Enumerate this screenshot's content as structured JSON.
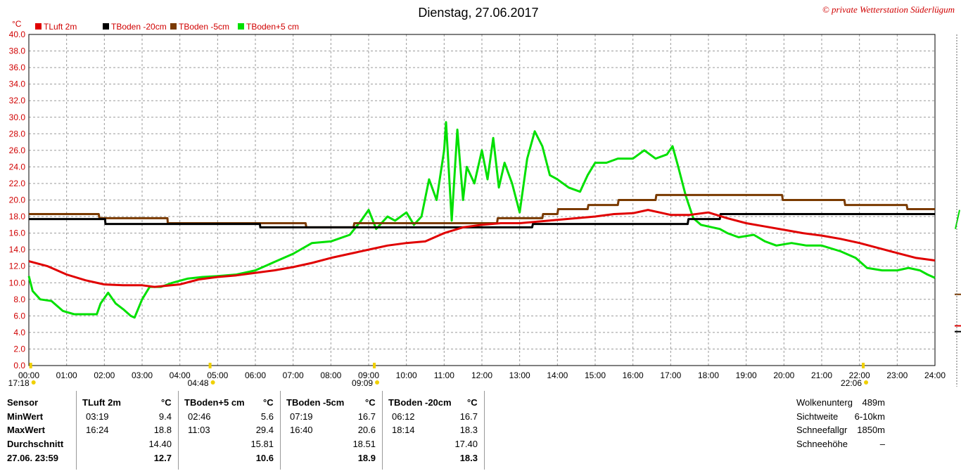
{
  "chart_data": {
    "type": "line",
    "title": "Dienstag, 27.06.2017",
    "watermark": "© private Wetterstation Süderlügum",
    "yunit": "°C",
    "ylim": [
      0,
      40
    ],
    "xlim": [
      0,
      24
    ],
    "yticks": [
      "0.0",
      "2.0",
      "4.0",
      "6.0",
      "8.0",
      "10.0",
      "12.0",
      "14.0",
      "16.0",
      "18.0",
      "20.0",
      "22.0",
      "24.0",
      "26.0",
      "28.0",
      "30.0",
      "32.0",
      "34.0",
      "36.0",
      "38.0",
      "40.0"
    ],
    "xticks": [
      "00:00",
      "01:00",
      "02:00",
      "03:00",
      "04:00",
      "05:00",
      "06:00",
      "07:00",
      "08:00",
      "09:00",
      "10:00",
      "11:00",
      "12:00",
      "13:00",
      "14:00",
      "15:00",
      "16:00",
      "17:00",
      "18:00",
      "19:00",
      "20:00",
      "21:00",
      "22:00",
      "23:00",
      "24:00"
    ],
    "grid": true,
    "legend_position": "top-left",
    "markers": [
      {
        "label": "17:18",
        "x": 0.05
      },
      {
        "label": "04:48",
        "x": 4.8
      },
      {
        "label": "09:09",
        "x": 9.15
      },
      {
        "label": "22:06",
        "x": 22.1
      }
    ],
    "series": [
      {
        "name": "TLuft 2m",
        "color": "#e00000",
        "x": [
          0,
          0.5,
          1,
          1.5,
          2,
          2.5,
          3,
          3.33,
          4,
          4.5,
          5,
          5.5,
          6,
          6.5,
          7,
          7.5,
          8,
          8.5,
          9,
          9.5,
          10,
          10.5,
          11,
          11.5,
          12,
          12.5,
          13,
          13.5,
          14,
          14.5,
          15,
          15.5,
          16,
          16.4,
          16.8,
          17,
          17.5,
          18,
          18.5,
          19,
          19.5,
          20,
          20.5,
          21,
          21.5,
          22,
          22.5,
          23,
          23.5,
          24
        ],
        "y": [
          12.6,
          12.0,
          11.0,
          10.3,
          9.8,
          9.7,
          9.7,
          9.5,
          9.8,
          10.4,
          10.7,
          10.9,
          11.2,
          11.5,
          11.9,
          12.4,
          13.0,
          13.5,
          14.0,
          14.5,
          14.8,
          15.0,
          16.0,
          16.7,
          17.0,
          17.2,
          17.2,
          17.4,
          17.6,
          17.8,
          18.0,
          18.3,
          18.4,
          18.8,
          18.4,
          18.2,
          18.2,
          18.5,
          17.8,
          17.2,
          16.8,
          16.4,
          16.0,
          15.7,
          15.3,
          14.8,
          14.2,
          13.6,
          13.0,
          12.7
        ]
      },
      {
        "name": "TBoden -20cm",
        "color": "#000000",
        "x": [
          0,
          2.02,
          2.03,
          6.12,
          6.13,
          9.5,
          9.51,
          13.33,
          13.35,
          17.45,
          17.47,
          18.3,
          18.32,
          24
        ],
        "y": [
          17.7,
          17.7,
          17.1,
          17.1,
          16.7,
          16.7,
          16.7,
          16.7,
          17.1,
          17.1,
          17.7,
          17.7,
          18.3,
          18.3
        ]
      },
      {
        "name": "TBoden -5cm",
        "color": "#7a3a00",
        "x": [
          0,
          1.85,
          1.87,
          3.67,
          3.68,
          7.33,
          7.35,
          8.6,
          8.62,
          9.2,
          9.22,
          12.4,
          12.42,
          13.6,
          13.62,
          14.0,
          14.02,
          14.8,
          14.82,
          15.6,
          15.62,
          16.6,
          16.62,
          19.95,
          19.97,
          21.6,
          21.62,
          22.5,
          22.52,
          23.25,
          23.27,
          24
        ],
        "y": [
          18.3,
          18.3,
          17.8,
          17.8,
          17.2,
          17.2,
          16.7,
          16.7,
          17.2,
          17.2,
          17.2,
          17.2,
          17.8,
          17.8,
          18.3,
          18.3,
          18.9,
          18.9,
          19.4,
          19.4,
          20.0,
          20.0,
          20.6,
          20.6,
          20.0,
          20.0,
          19.4,
          19.4,
          19.4,
          19.4,
          18.9,
          18.9
        ]
      },
      {
        "name": "TBoden+5 cm",
        "color": "#00e000",
        "x": [
          0,
          0.1,
          0.3,
          0.6,
          0.9,
          1.2,
          1.8,
          1.9,
          2.1,
          2.3,
          2.5,
          2.7,
          2.8,
          3.0,
          3.2,
          3.5,
          3.8,
          4.2,
          4.6,
          5.0,
          5.5,
          6.0,
          6.5,
          7.0,
          7.5,
          8.0,
          8.5,
          8.8,
          9.0,
          9.2,
          9.5,
          9.7,
          10.0,
          10.2,
          10.4,
          10.6,
          10.8,
          11.0,
          11.05,
          11.2,
          11.35,
          11.5,
          11.6,
          11.8,
          12.0,
          12.15,
          12.3,
          12.45,
          12.6,
          12.8,
          13.0,
          13.2,
          13.4,
          13.6,
          13.8,
          14.0,
          14.3,
          14.6,
          14.8,
          15.0,
          15.3,
          15.6,
          16.0,
          16.3,
          16.6,
          16.9,
          17.05,
          17.2,
          17.4,
          17.6,
          17.8,
          18.0,
          18.3,
          18.5,
          18.8,
          19.2,
          19.5,
          19.8,
          20.2,
          20.6,
          21.0,
          21.5,
          21.9,
          22.2,
          22.6,
          23.0,
          23.3,
          23.6,
          23.8,
          24
        ],
        "y": [
          10.8,
          9.0,
          8.0,
          7.8,
          6.6,
          6.2,
          6.2,
          7.5,
          8.8,
          7.5,
          6.8,
          6.0,
          5.8,
          8.0,
          9.5,
          9.5,
          10.0,
          10.5,
          10.7,
          10.8,
          11.0,
          11.5,
          12.5,
          13.5,
          14.8,
          15.0,
          15.8,
          17.5,
          18.8,
          16.5,
          18.0,
          17.5,
          18.5,
          17.0,
          18.0,
          22.5,
          20.0,
          26.0,
          29.4,
          17.5,
          28.5,
          20.0,
          24.0,
          22.0,
          26.0,
          22.5,
          27.5,
          21.5,
          24.5,
          22.0,
          18.5,
          25.0,
          28.3,
          26.5,
          23.0,
          22.5,
          21.5,
          21.0,
          23.0,
          24.5,
          24.5,
          25.0,
          25.0,
          26.0,
          25.0,
          25.5,
          26.5,
          24.0,
          20.5,
          17.8,
          17.0,
          16.8,
          16.5,
          16.0,
          15.5,
          15.8,
          15.0,
          14.5,
          14.8,
          14.5,
          14.5,
          13.8,
          13.0,
          11.8,
          11.5,
          11.5,
          11.8,
          11.5,
          11.0,
          10.6
        ]
      }
    ]
  },
  "legend_items": [
    "TLuft 2m",
    "TBoden -20cm",
    "TBoden -5cm",
    "TBoden+5 cm"
  ],
  "stats": {
    "row_labels": [
      "Sensor",
      "MinWert",
      "MaxWert",
      "Durchschnitt",
      "27.06. 23:59"
    ],
    "unit": "°C",
    "columns": [
      {
        "name": "TLuft 2m",
        "min_time": "03:19",
        "min": "9.4",
        "max_time": "16:24",
        "max": "18.8",
        "avg": "14.40",
        "current": "12.7"
      },
      {
        "name": "TBoden+5 cm",
        "min_time": "02:46",
        "min": "5.6",
        "max_time": "11:03",
        "max": "29.4",
        "avg": "15.81",
        "current": "10.6"
      },
      {
        "name": "TBoden -5cm",
        "min_time": "07:19",
        "min": "16.7",
        "max_time": "16:40",
        "max": "20.6",
        "avg": "18.51",
        "current": "18.9"
      },
      {
        "name": "TBoden -20cm",
        "min_time": "06:12",
        "min": "16.7",
        "max_time": "18:14",
        "max": "18.3",
        "avg": "17.40",
        "current": "18.3"
      }
    ],
    "right": [
      {
        "label": "Wolkenunterg",
        "value": "489m"
      },
      {
        "label": "Sichtweite",
        "value": "6-10km"
      },
      {
        "label": "Schneefallgr",
        "value": "1850m"
      },
      {
        "label": "Schneehöhe",
        "value": "–"
      }
    ]
  }
}
